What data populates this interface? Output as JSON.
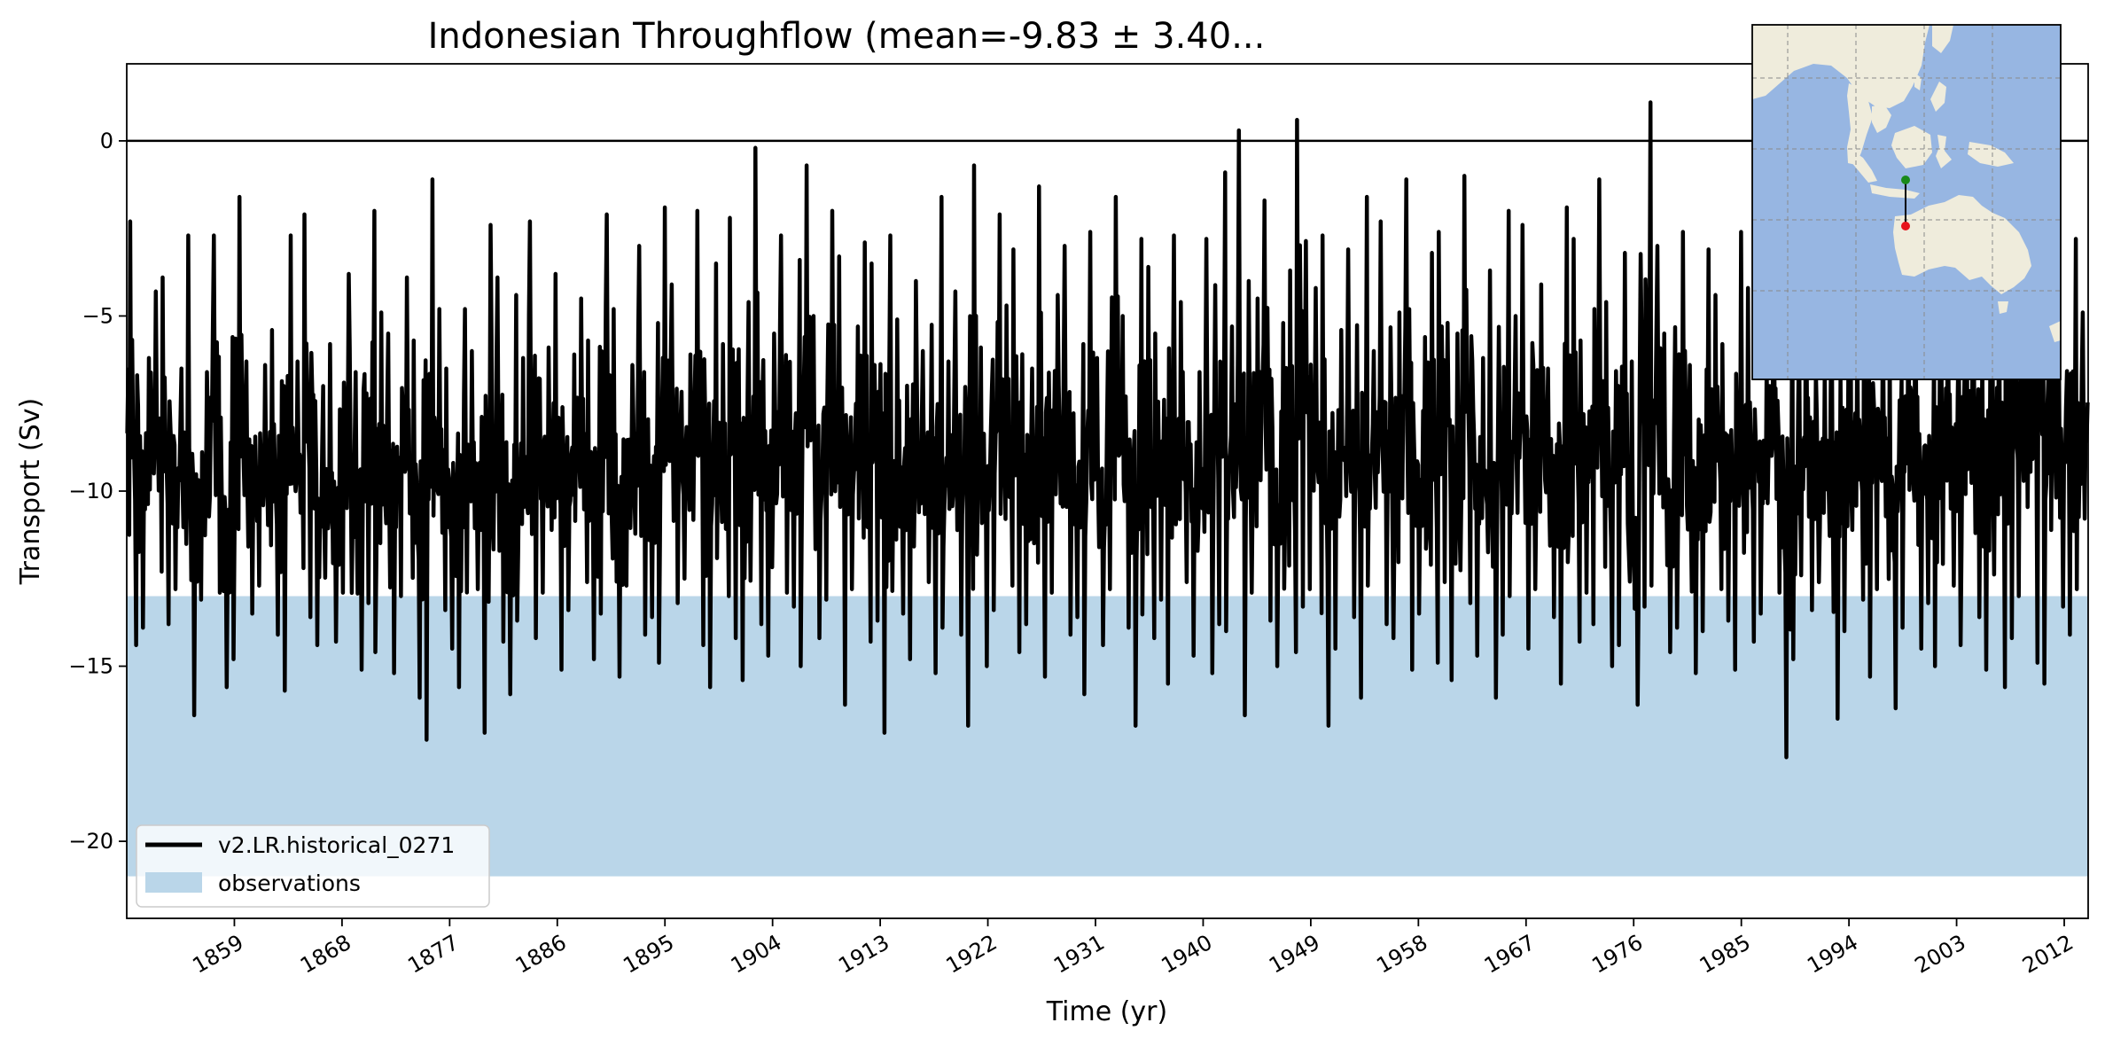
{
  "chart_data": {
    "type": "line",
    "title": "Indonesian Throughflow (mean=-9.83 ± 3.40...",
    "xlabel": "Time (yr)",
    "ylabel": "Transport (Sv)",
    "xlim": [
      1850,
      2014
    ],
    "ylim": [
      -22.2,
      2.2
    ],
    "x_ticks": [
      1859,
      1868,
      1877,
      1886,
      1895,
      1904,
      1913,
      1922,
      1931,
      1940,
      1949,
      1958,
      1967,
      1976,
      1985,
      1994,
      2003,
      2012
    ],
    "y_ticks": [
      0,
      -5,
      -10,
      -15,
      -20
    ],
    "grid": false,
    "reference_line_y": 0,
    "legend": {
      "placement": "lower-left"
    },
    "series": [
      {
        "name": "v2.LR.historical_0271",
        "kind": "line",
        "color": "#000000",
        "mean": -9.83,
        "std": 3.4,
        "frequency": "monthly",
        "x_start": 1850,
        "x_end": 2014,
        "annual_minima": [
          -14.4,
          -13.9,
          -12.3,
          -13.8,
          -12.8,
          -16.4,
          -13.1,
          -12.9,
          -15.6,
          -14.8,
          -13.5,
          -12.7,
          -14.1,
          -15.7,
          -12.2,
          -13.6,
          -14.4,
          -14.3,
          -12.9,
          -15.1,
          -13.2,
          -14.6,
          -15.2,
          -13.0,
          -15.9,
          -17.1,
          -13.4,
          -14.5,
          -15.6,
          -12.8,
          -16.9,
          -14.3,
          -15.8,
          -13.7,
          -14.2,
          -12.9,
          -15.1,
          -13.4,
          -12.6,
          -14.8,
          -13.5,
          -15.3,
          -12.7,
          -14.1,
          -13.6,
          -14.9,
          -13.2,
          -12.5,
          -14.4,
          -15.6,
          -13.0,
          -14.2,
          -15.4,
          -13.8,
          -14.7,
          -12.9,
          -13.3,
          -15.0,
          -14.2,
          -13.1,
          -16.1,
          -12.8,
          -14.3,
          -13.7,
          -16.9,
          -13.5,
          -14.8,
          -12.6,
          -15.2,
          -13.9,
          -14.1,
          -16.7,
          -15.0,
          -13.4,
          -12.7,
          -14.6,
          -13.8,
          -15.3,
          -12.9,
          -14.1,
          -13.6,
          -15.8,
          -14.4,
          -12.8,
          -13.9,
          -16.7,
          -14.2,
          -13.1,
          -15.5,
          -12.6,
          -14.7,
          -15.2,
          -13.8,
          -14.0,
          -16.4,
          -12.9,
          -13.7,
          -15.0,
          -14.6,
          -13.3,
          -12.8,
          -16.7,
          -14.5,
          -13.6,
          -15.9,
          -12.7,
          -13.8,
          -14.2,
          -15.1,
          -13.5,
          -14.9,
          -12.6,
          -15.4,
          -13.2,
          -14.7,
          -15.9,
          -14.1,
          -13.0,
          -14.5,
          -12.8,
          -13.6,
          -15.5,
          -14.3,
          -12.9,
          -13.8,
          -15.0,
          -14.4,
          -16.1,
          -13.3,
          -12.7,
          -14.6,
          -13.9,
          -15.2,
          -14.0,
          -12.8,
          -13.7,
          -15.1,
          -14.3,
          -13.5,
          -12.9,
          -17.6,
          -14.8,
          -13.4,
          -12.6,
          -16.5,
          -14.0,
          -13.1,
          -15.3,
          -12.8,
          -16.2,
          -13.9,
          -14.5,
          -13.2,
          -15.0,
          -12.7,
          -14.4,
          -13.6,
          -15.1,
          -15.6,
          -14.2,
          -13.0,
          -14.9,
          -15.5,
          -13.3,
          -14.1,
          -12.8
        ],
        "annual_maxima": [
          -2.3,
          -6.2,
          -4.3,
          -3.9,
          -6.5,
          -2.7,
          -6.6,
          -2.7,
          -5.6,
          -1.6,
          -6.3,
          -6.4,
          -5.4,
          -2.7,
          -6.3,
          -2.1,
          -7.0,
          -5.8,
          -3.8,
          -6.6,
          -2.0,
          -4.9,
          -5.5,
          -3.9,
          -5.7,
          -1.1,
          -4.8,
          -6.5,
          -4.8,
          -6.0,
          -2.4,
          -3.9,
          -4.4,
          -6.2,
          -2.3,
          -5.9,
          -3.8,
          -6.1,
          -4.5,
          -5.7,
          -2.1,
          -4.8,
          -6.4,
          -3.0,
          -5.2,
          -1.9,
          -4.1,
          -6.1,
          -2.0,
          -3.5,
          -5.8,
          -2.2,
          -4.6,
          -0.2,
          -5.5,
          -2.7,
          -3.4,
          -0.7,
          -5.0,
          -2.0,
          -3.3,
          -5.3,
          -2.9,
          -3.5,
          -2.7,
          -5.1,
          -4.0,
          -6.0,
          -1.6,
          -6.3,
          -4.3,
          -0.7,
          -5.9,
          -2.1,
          -4.7,
          -3.1,
          -6.5,
          -1.3,
          -4.4,
          -3.0,
          -5.8,
          -2.6,
          -6.2,
          -1.6,
          -5.0,
          -2.8,
          -3.6,
          -5.5,
          -2.7,
          -4.6,
          -6.6,
          -2.8,
          -0.9,
          -5.3,
          0.3,
          -4.5,
          -1.7,
          -5.2,
          -3.7,
          0.6,
          -4.2,
          -2.7,
          -5.4,
          -3.1,
          -1.6,
          -6.0,
          -2.3,
          -4.9,
          -1.1,
          -5.6,
          -3.2,
          -2.6,
          -5.5,
          -1.0,
          -6.2,
          -3.7,
          -2.0,
          -5.0,
          -2.4,
          -4.1,
          -6.5,
          -1.9,
          -2.8,
          -5.7,
          -1.1,
          -4.6,
          -3.2,
          -6.3,
          1.1,
          -3.0,
          -5.5,
          -2.6,
          -6.4,
          -3.1,
          -4.4,
          -5.8,
          -2.6,
          -4.2,
          -6.2,
          -2.7,
          -3.8,
          -5.4,
          -3.1,
          -6.5,
          -4.4,
          -2.0,
          -5.2,
          -2.4,
          -4.7,
          -5.8,
          -3.5,
          -2.9,
          -6.0,
          -3.3,
          -4.1,
          -2.8,
          -4.0,
          -1.4,
          -2.9,
          -1.2,
          -3.1,
          -1.5,
          -2.2,
          -3.5,
          -2.8,
          -4.9,
          -7.8
        ]
      },
      {
        "name": "observations",
        "kind": "band",
        "color": "#bad6e9",
        "y_range": [
          -21.0,
          -13.0
        ]
      }
    ],
    "inset_map": {
      "land_color": "#efecdc",
      "ocean_color": "#97b6e2",
      "start_point_color": "#1a8a1a",
      "end_point_color": "#e8141c"
    }
  }
}
